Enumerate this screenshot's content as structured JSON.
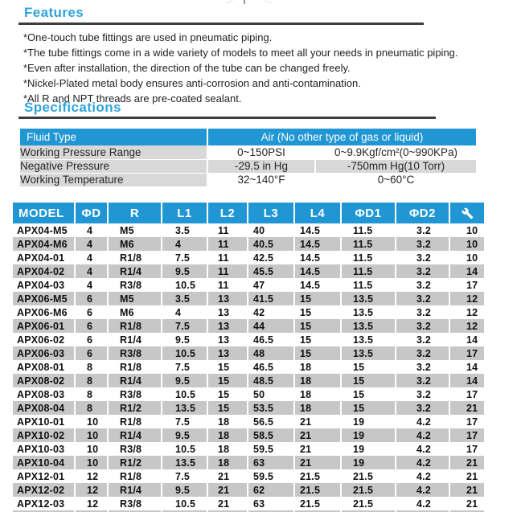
{
  "colors": {
    "accent_blue": "#2097d4",
    "heading_blue": "#2ea4dc",
    "rule_dark": "#3d3d3d",
    "stripe_gray": "#c7c7c7",
    "spec_gray": "#d8d8d8"
  },
  "features": {
    "heading": "Features",
    "items": [
      "*One-touch tube fittings are used in pneumatic piping.",
      "*The tube fittings come in a wide variety of models to meet all your needs in pneumatic piping.",
      "*Even after installation, the direction of the tube can be changed freely.",
      "*Nickel-Plated metal body ensures anti-corrosion and anti-contamination.",
      "*All R and NPT threads are pre-coated sealant."
    ]
  },
  "specifications": {
    "heading": "Specifications",
    "table": {
      "header": {
        "label": "Fluid Type",
        "value": "Air (No other type of gas or liquid)"
      },
      "rows": [
        {
          "label": "Working Pressure Range",
          "imperial": "0~150PSI",
          "metric": "0~9.9Kgf/cm²(0~990KPa)"
        },
        {
          "label": "Negative Pressure",
          "imperial": "-29.5 in Hg",
          "metric": "-750mm Hg(10 Torr)"
        },
        {
          "label": "Working Temperature",
          "imperial": "32~140°F",
          "metric": "0~60°C"
        }
      ]
    }
  },
  "dimensions_table": {
    "columns": [
      "MODEL",
      "ΦD",
      "R",
      "L1",
      "L2",
      "L3",
      "L4",
      "ΦD1",
      "ΦD2"
    ],
    "last_column_icon": "wrench-icon",
    "column_keys": [
      "model",
      "phi-d",
      "r",
      "l1",
      "l2",
      "l3",
      "l4",
      "phi-d1",
      "phi-d2",
      "wrench"
    ],
    "rows": [
      [
        "APX04-M5",
        "4",
        "M5",
        "3.5",
        "11",
        "40",
        "14.5",
        "11.5",
        "3.2",
        "10"
      ],
      [
        "APX04-M6",
        "4",
        "M6",
        "4",
        "11",
        "40.5",
        "14.5",
        "11.5",
        "3.2",
        "10"
      ],
      [
        "APX04-01",
        "4",
        "R1/8",
        "7.5",
        "11",
        "42.5",
        "14.5",
        "11.5",
        "3.2",
        "10"
      ],
      [
        "APX04-02",
        "4",
        "R1/4",
        "9.5",
        "11",
        "45.5",
        "14.5",
        "11.5",
        "3.2",
        "14"
      ],
      [
        "APX04-03",
        "4",
        "R3/8",
        "10.5",
        "11",
        "47",
        "14.5",
        "11.5",
        "3.2",
        "17"
      ],
      [
        "APX06-M5",
        "6",
        "M5",
        "3.5",
        "13",
        "41.5",
        "15",
        "13.5",
        "3.2",
        "12"
      ],
      [
        "APX06-M6",
        "6",
        "M6",
        "4",
        "13",
        "42",
        "15",
        "13.5",
        "3.2",
        "12"
      ],
      [
        "APX06-01",
        "6",
        "R1/8",
        "7.5",
        "13",
        "44",
        "15",
        "13.5",
        "3.2",
        "12"
      ],
      [
        "APX06-02",
        "6",
        "R1/4",
        "9.5",
        "13",
        "46.5",
        "15",
        "13.5",
        "3.2",
        "14"
      ],
      [
        "APX06-03",
        "6",
        "R3/8",
        "10.5",
        "13",
        "48",
        "15",
        "13.5",
        "3.2",
        "17"
      ],
      [
        "APX08-01",
        "8",
        "R1/8",
        "7.5",
        "15",
        "46.5",
        "18",
        "15",
        "3.2",
        "14"
      ],
      [
        "APX08-02",
        "8",
        "R1/4",
        "9.5",
        "15",
        "48.5",
        "18",
        "15",
        "3.2",
        "14"
      ],
      [
        "APX08-03",
        "8",
        "R3/8",
        "10.5",
        "15",
        "50",
        "18",
        "15",
        "3.2",
        "17"
      ],
      [
        "APX08-04",
        "8",
        "R1/2",
        "13.5",
        "15",
        "53.5",
        "18",
        "15",
        "3.2",
        "21"
      ],
      [
        "APX10-01",
        "10",
        "R1/8",
        "7.5",
        "18",
        "56.5",
        "21",
        "19",
        "4.2",
        "17"
      ],
      [
        "APX10-02",
        "10",
        "R1/4",
        "9.5",
        "18",
        "58.5",
        "21",
        "19",
        "4.2",
        "17"
      ],
      [
        "APX10-03",
        "10",
        "R3/8",
        "10.5",
        "18",
        "59.5",
        "21",
        "19",
        "4.2",
        "17"
      ],
      [
        "APX10-04",
        "10",
        "R1/2",
        "13.5",
        "18",
        "63",
        "21",
        "19",
        "4.2",
        "21"
      ],
      [
        "APX12-01",
        "12",
        "R1/8",
        "7.5",
        "21",
        "59.5",
        "21.5",
        "21.5",
        "4.2",
        "21"
      ],
      [
        "APX12-02",
        "12",
        "R1/4",
        "9.5",
        "21",
        "62",
        "21.5",
        "21.5",
        "4.2",
        "21"
      ],
      [
        "APX12-03",
        "12",
        "R3/8",
        "10.5",
        "21",
        "63",
        "21.5",
        "21.5",
        "4.2",
        "21"
      ]
    ]
  }
}
